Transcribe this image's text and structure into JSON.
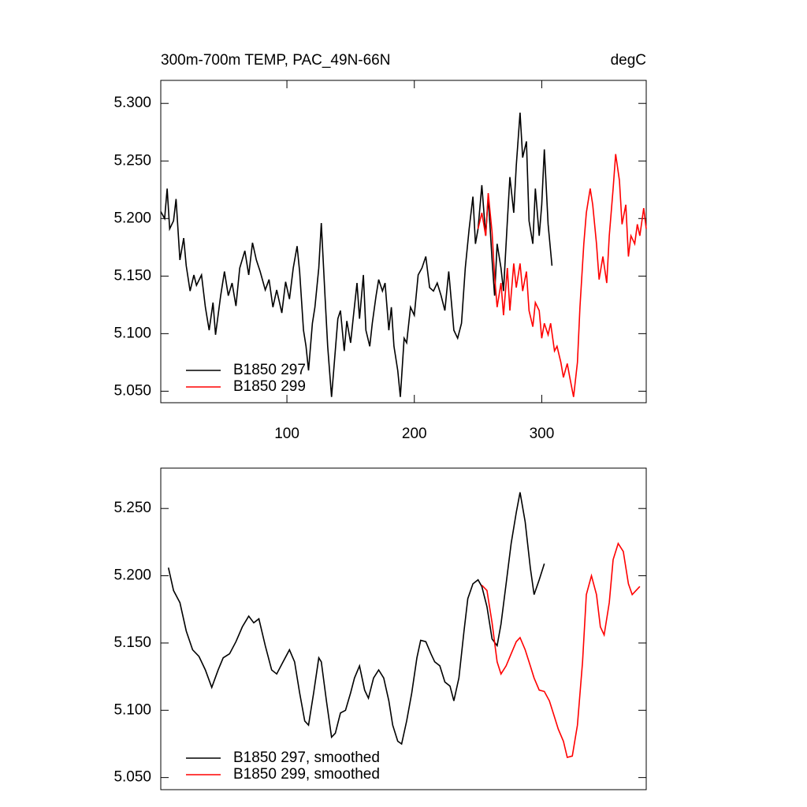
{
  "chart_data": [
    {
      "type": "line",
      "title": "300m-700m TEMP, PAC_49N-66N",
      "units": "degC",
      "xlim": [
        1,
        382
      ],
      "xticks": [
        100,
        200,
        300
      ],
      "ylim": [
        5.04,
        5.32
      ],
      "yticks": [
        {
          "value": 5.05,
          "label": "5.050"
        },
        {
          "value": 5.1,
          "label": "5.100"
        },
        {
          "value": 5.15,
          "label": "5.150"
        },
        {
          "value": 5.2,
          "label": "5.200"
        },
        {
          "value": 5.25,
          "label": "5.250"
        },
        {
          "value": 5.3,
          "label": "5.300"
        }
      ],
      "series": [
        {
          "name": "B1850 297",
          "color": "#000000",
          "x": [
            1,
            4,
            6,
            8,
            11,
            13,
            16,
            19,
            21,
            24,
            27,
            29,
            33,
            36,
            39,
            42,
            44,
            48,
            51,
            54,
            57,
            60,
            63,
            67,
            70,
            73,
            76,
            79,
            83,
            86,
            89,
            92,
            96,
            99,
            102,
            105,
            108,
            110,
            113,
            115,
            117,
            120,
            122,
            125,
            127,
            130,
            132,
            135,
            137,
            140,
            142,
            145,
            147,
            150,
            152,
            155,
            157,
            160,
            162,
            165,
            167,
            170,
            172,
            175,
            177,
            180,
            182,
            184,
            187,
            189,
            192,
            194,
            197,
            200,
            203,
            206,
            209,
            212,
            215,
            218,
            221,
            224,
            227,
            231,
            234,
            237,
            240,
            243,
            246,
            248,
            250,
            253,
            256,
            258,
            261,
            263,
            265,
            268,
            270,
            273,
            275,
            278,
            280,
            283,
            285,
            288,
            290,
            293,
            295,
            298,
            300,
            302,
            305,
            308
          ],
          "values": [
            5.206,
            5.2,
            5.226,
            5.191,
            5.198,
            5.217,
            5.164,
            5.183,
            5.159,
            5.137,
            5.151,
            5.142,
            5.151,
            5.123,
            5.103,
            5.127,
            5.099,
            5.133,
            5.154,
            5.133,
            5.144,
            5.124,
            5.157,
            5.172,
            5.151,
            5.179,
            5.164,
            5.154,
            5.138,
            5.147,
            5.123,
            5.138,
            5.118,
            5.145,
            5.13,
            5.157,
            5.176,
            5.154,
            5.103,
            5.089,
            5.068,
            5.109,
            5.123,
            5.157,
            5.196,
            5.13,
            5.089,
            5.045,
            5.072,
            5.113,
            5.12,
            5.085,
            5.111,
            5.092,
            5.113,
            5.144,
            5.113,
            5.151,
            5.103,
            5.089,
            5.109,
            5.133,
            5.147,
            5.137,
            5.144,
            5.103,
            5.123,
            5.089,
            5.068,
            5.045,
            5.096,
            5.092,
            5.123,
            5.116,
            5.151,
            5.157,
            5.167,
            5.14,
            5.137,
            5.144,
            5.133,
            5.12,
            5.154,
            5.103,
            5.096,
            5.109,
            5.157,
            5.191,
            5.219,
            5.178,
            5.191,
            5.229,
            5.185,
            5.219,
            5.164,
            5.133,
            5.178,
            5.157,
            5.137,
            5.198,
            5.236,
            5.205,
            5.246,
            5.292,
            5.253,
            5.267,
            5.198,
            5.178,
            5.226,
            5.185,
            5.212,
            5.26,
            5.195,
            5.159
          ]
        },
        {
          "name": "B1850 299",
          "color": "#ff0000",
          "x": [
            250,
            253,
            256,
            258,
            261,
            263,
            265,
            268,
            270,
            273,
            275,
            278,
            280,
            283,
            285,
            288,
            290,
            293,
            295,
            298,
            300,
            302,
            305,
            307,
            310,
            312,
            315,
            317,
            320,
            322,
            325,
            328,
            330,
            333,
            335,
            338,
            340,
            343,
            345,
            348,
            351,
            353,
            356,
            358,
            361,
            363,
            366,
            368,
            370,
            373,
            375,
            377,
            380,
            382
          ],
          "values": [
            5.191,
            5.205,
            5.185,
            5.222,
            5.188,
            5.15,
            5.123,
            5.144,
            5.116,
            5.157,
            5.12,
            5.161,
            5.14,
            5.161,
            5.137,
            5.154,
            5.12,
            5.106,
            5.127,
            5.12,
            5.096,
            5.109,
            5.099,
            5.109,
            5.085,
            5.089,
            5.075,
            5.062,
            5.074,
            5.062,
            5.045,
            5.075,
            5.123,
            5.178,
            5.205,
            5.226,
            5.212,
            5.178,
            5.147,
            5.167,
            5.144,
            5.185,
            5.226,
            5.256,
            5.233,
            5.195,
            5.212,
            5.167,
            5.185,
            5.178,
            5.195,
            5.185,
            5.209,
            5.191
          ]
        }
      ]
    },
    {
      "type": "line",
      "xlim": [
        1,
        382
      ],
      "ylim": [
        5.041,
        5.28
      ],
      "yticks": [
        {
          "value": 5.05,
          "label": "5.050"
        },
        {
          "value": 5.1,
          "label": "5.100"
        },
        {
          "value": 5.15,
          "label": "5.150"
        },
        {
          "value": 5.2,
          "label": "5.200"
        },
        {
          "value": 5.25,
          "label": "5.250"
        }
      ],
      "series": [
        {
          "name": "B1850 297, smoothed",
          "color": "#000000",
          "x": [
            7,
            11,
            16,
            21,
            26,
            31,
            36,
            41,
            46,
            50,
            55,
            60,
            65,
            70,
            74,
            78,
            83,
            88,
            92,
            97,
            102,
            106,
            110,
            114,
            117,
            121,
            125,
            127,
            131,
            135,
            138,
            142,
            146,
            150,
            153,
            157,
            161,
            164,
            168,
            172,
            176,
            180,
            183,
            187,
            190,
            194,
            198,
            202,
            205,
            209,
            213,
            216,
            220,
            224,
            228,
            231,
            235,
            239,
            242,
            246,
            250,
            253,
            257,
            261,
            265,
            268,
            272,
            276,
            280,
            283,
            287,
            291,
            294,
            298,
            302
          ],
          "values": [
            5.206,
            5.189,
            5.18,
            5.159,
            5.145,
            5.14,
            5.13,
            5.117,
            5.13,
            5.139,
            5.142,
            5.151,
            5.162,
            5.17,
            5.165,
            5.168,
            5.148,
            5.13,
            5.127,
            5.136,
            5.145,
            5.136,
            5.113,
            5.092,
            5.089,
            5.113,
            5.139,
            5.136,
            5.107,
            5.08,
            5.083,
            5.098,
            5.1,
            5.113,
            5.124,
            5.133,
            5.115,
            5.109,
            5.124,
            5.13,
            5.124,
            5.107,
            5.089,
            5.077,
            5.075,
            5.092,
            5.113,
            5.139,
            5.152,
            5.151,
            5.142,
            5.136,
            5.133,
            5.121,
            5.118,
            5.107,
            5.124,
            5.159,
            5.183,
            5.194,
            5.197,
            5.192,
            5.177,
            5.153,
            5.148,
            5.164,
            5.194,
            5.224,
            5.247,
            5.262,
            5.24,
            5.206,
            5.186,
            5.197,
            5.209
          ]
        },
        {
          "name": "B1850 299, smoothed",
          "color": "#ff0000",
          "x": [
            253,
            257,
            261,
            265,
            268,
            272,
            276,
            280,
            283,
            287,
            291,
            294,
            298,
            302,
            306,
            309,
            313,
            317,
            320,
            324,
            328,
            332,
            335,
            339,
            343,
            346,
            349,
            353,
            356,
            360,
            364,
            368,
            371,
            375,
            377
          ],
          "values": [
            5.193,
            5.189,
            5.165,
            5.136,
            5.127,
            5.133,
            5.142,
            5.151,
            5.154,
            5.145,
            5.133,
            5.124,
            5.115,
            5.114,
            5.107,
            5.098,
            5.086,
            5.077,
            5.065,
            5.066,
            5.089,
            5.136,
            5.186,
            5.2,
            5.186,
            5.162,
            5.156,
            5.18,
            5.212,
            5.224,
            5.218,
            5.194,
            5.186,
            5.19,
            5.192
          ]
        }
      ]
    }
  ]
}
